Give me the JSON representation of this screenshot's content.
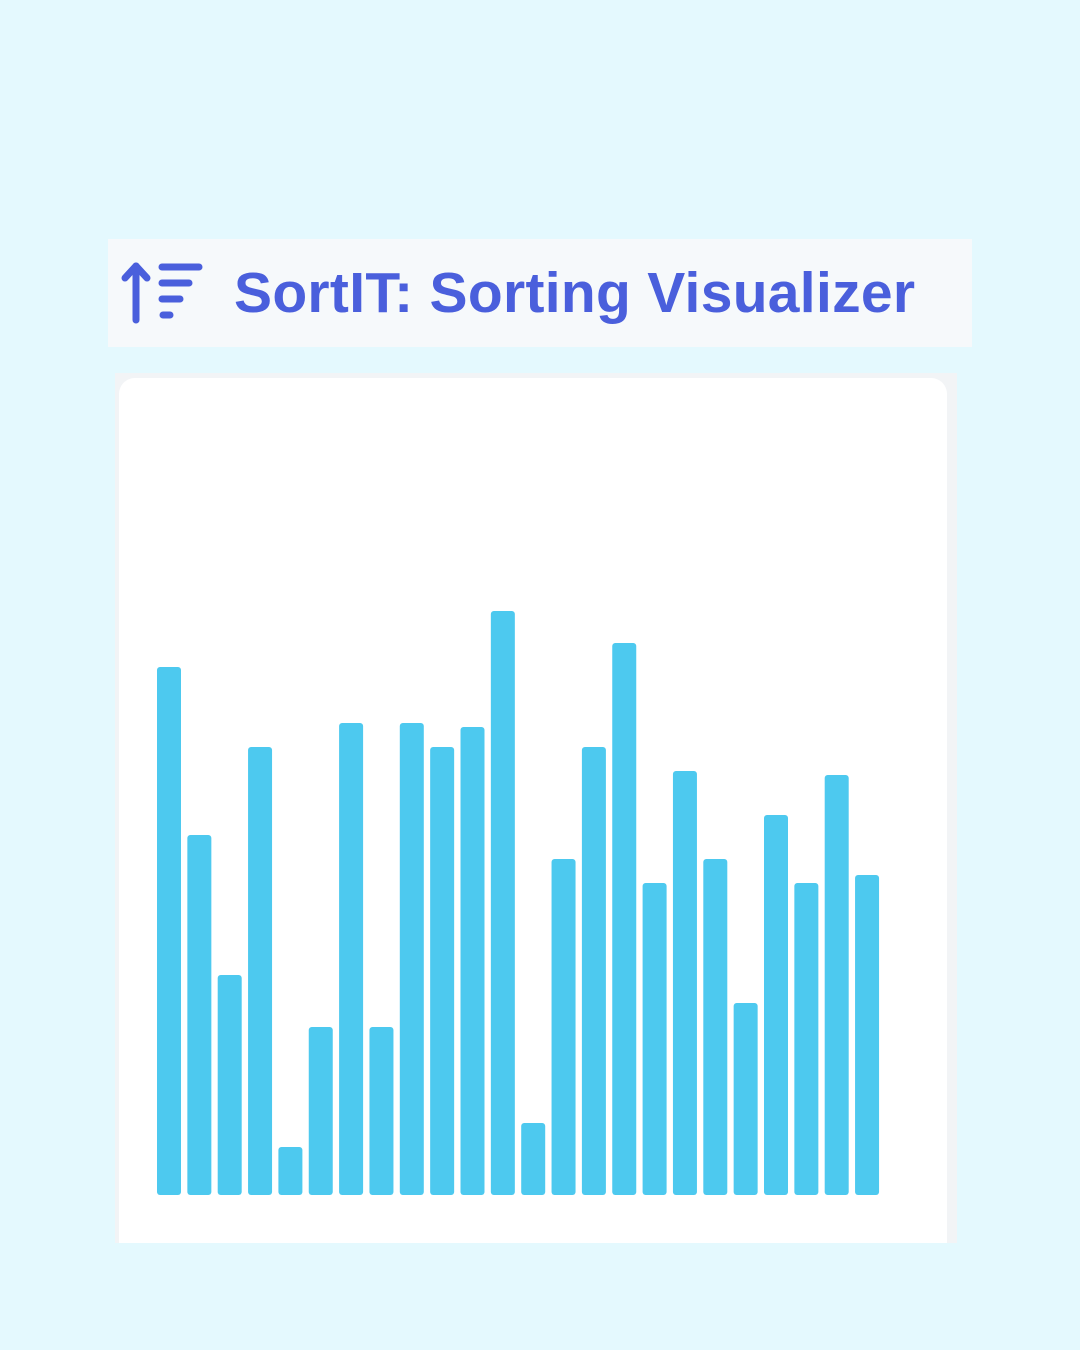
{
  "app": {
    "title": "SortIT: Sorting Visualizer",
    "logo_icon": "sort-ascending-icon"
  },
  "colors": {
    "page_background": "#e4f9fe",
    "header_background": "#f6f9fb",
    "title_color": "#4a5fdc",
    "bar_color": "#4dc9ef",
    "card_background": "#ffffff"
  },
  "chart_data": {
    "type": "bar",
    "values": [
      66,
      45,
      27.5,
      56,
      6,
      21,
      59,
      21,
      59,
      56,
      58.5,
      73,
      9,
      42,
      56,
      69,
      39,
      53,
      42,
      24,
      47.5,
      39,
      52.5,
      40
    ],
    "ylim": [
      0,
      100
    ],
    "grid": false
  }
}
